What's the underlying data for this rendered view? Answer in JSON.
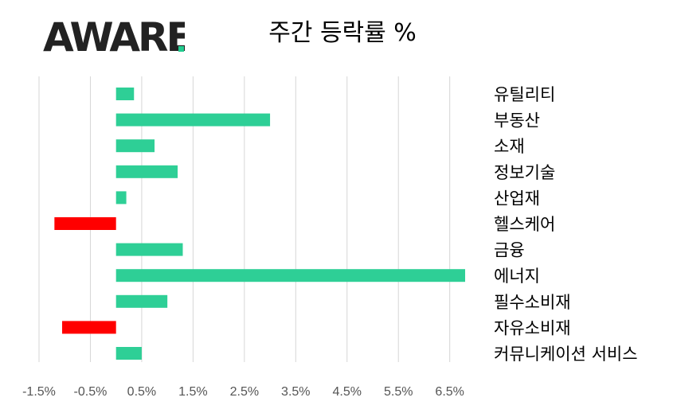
{
  "logo": {
    "text": "AWARE",
    "colors": {
      "dark": "#222222",
      "accent": "#22cc8f"
    }
  },
  "title": "주간 등락률 %",
  "chart_data": {
    "type": "bar",
    "orientation": "horizontal",
    "title": "주간 등락률 %",
    "xlabel": "",
    "ylabel": "",
    "categories": [
      "유틸리티",
      "부동산",
      "소재",
      "정보기술",
      "산업재",
      "헬스케어",
      "금융",
      "에너지",
      "필수소비재",
      "자유소비재",
      "커뮤니케이션 서비스"
    ],
    "values": [
      0.35,
      3.0,
      0.75,
      1.2,
      0.2,
      -1.2,
      1.3,
      6.8,
      1.0,
      -1.05,
      0.5
    ],
    "xlim": [
      -1.5,
      6.8
    ],
    "ticks": [
      -1.5,
      -0.5,
      0.5,
      1.5,
      2.5,
      3.5,
      4.5,
      5.5,
      6.5
    ],
    "tick_labels": [
      "-1.5%",
      "-0.5%",
      "0.5%",
      "1.5%",
      "2.5%",
      "3.5%",
      "4.5%",
      "5.5%",
      "6.5%"
    ],
    "grid": true,
    "legend": "none",
    "colors": {
      "positive": "#2ecf96",
      "negative": "#ff0000",
      "grid": "#d6d6d6"
    }
  }
}
